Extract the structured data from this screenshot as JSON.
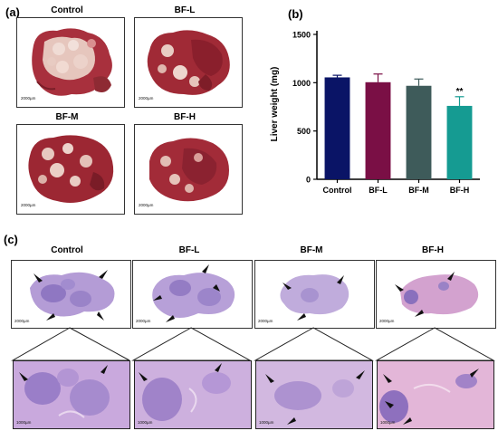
{
  "panel_a": {
    "label": "(a)",
    "photos": [
      {
        "title": "Control",
        "scale_bar": "2000µm"
      },
      {
        "title": "BF-L",
        "scale_bar": "2000µm"
      },
      {
        "title": "BF-M",
        "scale_bar": "2000µm"
      },
      {
        "title": "BF-H",
        "scale_bar": "2000µm"
      }
    ]
  },
  "panel_b": {
    "label": "(b)"
  },
  "chart_data": {
    "type": "bar",
    "categories": [
      "Control",
      "BF-L",
      "BF-M",
      "BF-H"
    ],
    "values": [
      1055,
      1005,
      968,
      760
    ],
    "errors": [
      22,
      85,
      70,
      95
    ],
    "significance": [
      "",
      "",
      "",
      "**"
    ],
    "ylabel": "Liver weight (mg)",
    "xlabel": "",
    "ylim": [
      0,
      1500
    ],
    "yticks": [
      0,
      500,
      1000,
      1500
    ],
    "colors": [
      "#0a1466",
      "#7a0f45",
      "#3e5b5a",
      "#159b92"
    ]
  },
  "panel_c": {
    "label": "(c)",
    "groups": [
      {
        "title": "Control",
        "scale_bar": "2000µm",
        "zoom_scale_bar": "1000µm"
      },
      {
        "title": "BF-L",
        "scale_bar": "2000µm",
        "zoom_scale_bar": "1000µm"
      },
      {
        "title": "BF-M",
        "scale_bar": "2000µm",
        "zoom_scale_bar": "1000µm"
      },
      {
        "title": "BF-H",
        "scale_bar": "2000µm",
        "zoom_scale_bar": "1000µm"
      }
    ]
  }
}
